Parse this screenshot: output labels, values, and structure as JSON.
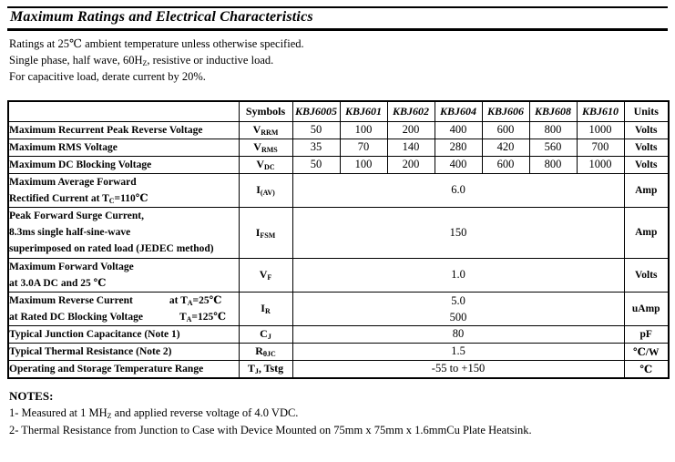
{
  "title": "Maximum Ratings and Electrical Characteristics",
  "intro": [
    [
      {
        "t": "Ratings at 25℃ ambient temperature unless otherwise specified."
      }
    ],
    [
      {
        "t": "Single phase, half wave, 60H"
      },
      {
        "s": "Z"
      },
      {
        "t": ", resistive or inductive load."
      }
    ],
    [
      {
        "t": "For capacitive load, derate current by 20%."
      }
    ]
  ],
  "table": {
    "header": {
      "row_label": "",
      "symbols": "Symbols",
      "parts": [
        "KBJ6005",
        "KBJ601",
        "KBJ602",
        "KBJ604",
        "KBJ606",
        "KBJ608",
        "KBJ610"
      ],
      "units": "Units"
    },
    "rows": [
      {
        "label": [
          [
            {
              "t": "Maximum Recurrent Peak Reverse Voltage"
            }
          ]
        ],
        "symbol": [
          {
            "t": "V"
          },
          {
            "s": "RRM"
          }
        ],
        "values": [
          "50",
          "100",
          "200",
          "400",
          "600",
          "800",
          "1000"
        ],
        "unit": "Volts"
      },
      {
        "label": [
          [
            {
              "t": "Maximum RMS Voltage"
            }
          ]
        ],
        "symbol": [
          {
            "t": "V"
          },
          {
            "s": "RMS"
          }
        ],
        "values": [
          "35",
          "70",
          "140",
          "280",
          "420",
          "560",
          "700"
        ],
        "unit": "Volts"
      },
      {
        "label": [
          [
            {
              "t": "Maximum DC Blocking Voltage"
            }
          ]
        ],
        "symbol": [
          {
            "t": "V"
          },
          {
            "s": "DC"
          }
        ],
        "values": [
          "50",
          "100",
          "200",
          "400",
          "600",
          "800",
          "1000"
        ],
        "unit": "Volts"
      },
      {
        "label": [
          [
            {
              "t": "Maximum Average Forward"
            }
          ],
          [
            {
              "t": "Rectified Current at T"
            },
            {
              "s": "C"
            },
            {
              "t": "=110℃"
            }
          ]
        ],
        "symbol": [
          {
            "t": "I"
          },
          {
            "s": "(AV)"
          }
        ],
        "value": "6.0",
        "unit": "Amp"
      },
      {
        "label": [
          [
            {
              "t": "Peak Forward Surge Current,"
            }
          ],
          [
            {
              "t": "8.3ms single half-sine-wave"
            }
          ],
          [
            {
              "t": "superimposed on rated load (JEDEC method)"
            }
          ]
        ],
        "symbol": [
          {
            "t": "I"
          },
          {
            "s": "FSM"
          }
        ],
        "value": "150",
        "unit": "Amp"
      },
      {
        "label": [
          [
            {
              "t": "Maximum Forward Voltage"
            }
          ],
          [
            {
              "t": "at 3.0A DC and 25 ℃"
            }
          ]
        ],
        "symbol": [
          {
            "t": "V"
          },
          {
            "s": "F"
          }
        ],
        "value": "1.0",
        "unit": "Volts"
      },
      {
        "label": [
          [
            {
              "t": "Maximum Reverse Current"
            },
            {
              "g": true
            },
            {
              "t": "at T"
            },
            {
              "s": "A"
            },
            {
              "t": "=25℃"
            }
          ],
          [
            {
              "t": "at Rated DC Blocking Voltage"
            },
            {
              "g": true
            },
            {
              "t": "T"
            },
            {
              "s": "A"
            },
            {
              "t": "=125℃"
            }
          ]
        ],
        "symbol": [
          {
            "t": "I"
          },
          {
            "s": "R"
          }
        ],
        "value_lines": [
          "5.0",
          "500"
        ],
        "unit": "uAmp"
      },
      {
        "label": [
          [
            {
              "t": "Typical Junction Capacitance (Note 1)"
            }
          ]
        ],
        "symbol": [
          {
            "t": "C"
          },
          {
            "s": "J"
          }
        ],
        "value": "80",
        "unit": "pF"
      },
      {
        "label": [
          [
            {
              "t": "Typical Thermal Resistance (Note 2)"
            }
          ]
        ],
        "symbol": [
          {
            "t": "R"
          },
          {
            "s": "θJC"
          }
        ],
        "value": "1.5",
        "unit": "℃/W"
      },
      {
        "label": [
          [
            {
              "t": "Operating and Storage Temperature Range"
            }
          ]
        ],
        "symbol": [
          {
            "t": "T"
          },
          {
            "s": "J"
          },
          {
            "t": ",  Tstg"
          }
        ],
        "value": "-55 to +150",
        "unit": "℃"
      }
    ]
  },
  "notes": {
    "title": "NOTES:",
    "items": [
      [
        {
          "t": "1- Measured at 1 MH"
        },
        {
          "s": "Z"
        },
        {
          "t": " and applied reverse voltage of 4.0 VDC."
        }
      ],
      [
        {
          "t": "2- Thermal Resistance from Junction to Case with Device Mounted on 75mm x 75mm x 1.6mmCu Plate Heatsink."
        }
      ]
    ]
  }
}
